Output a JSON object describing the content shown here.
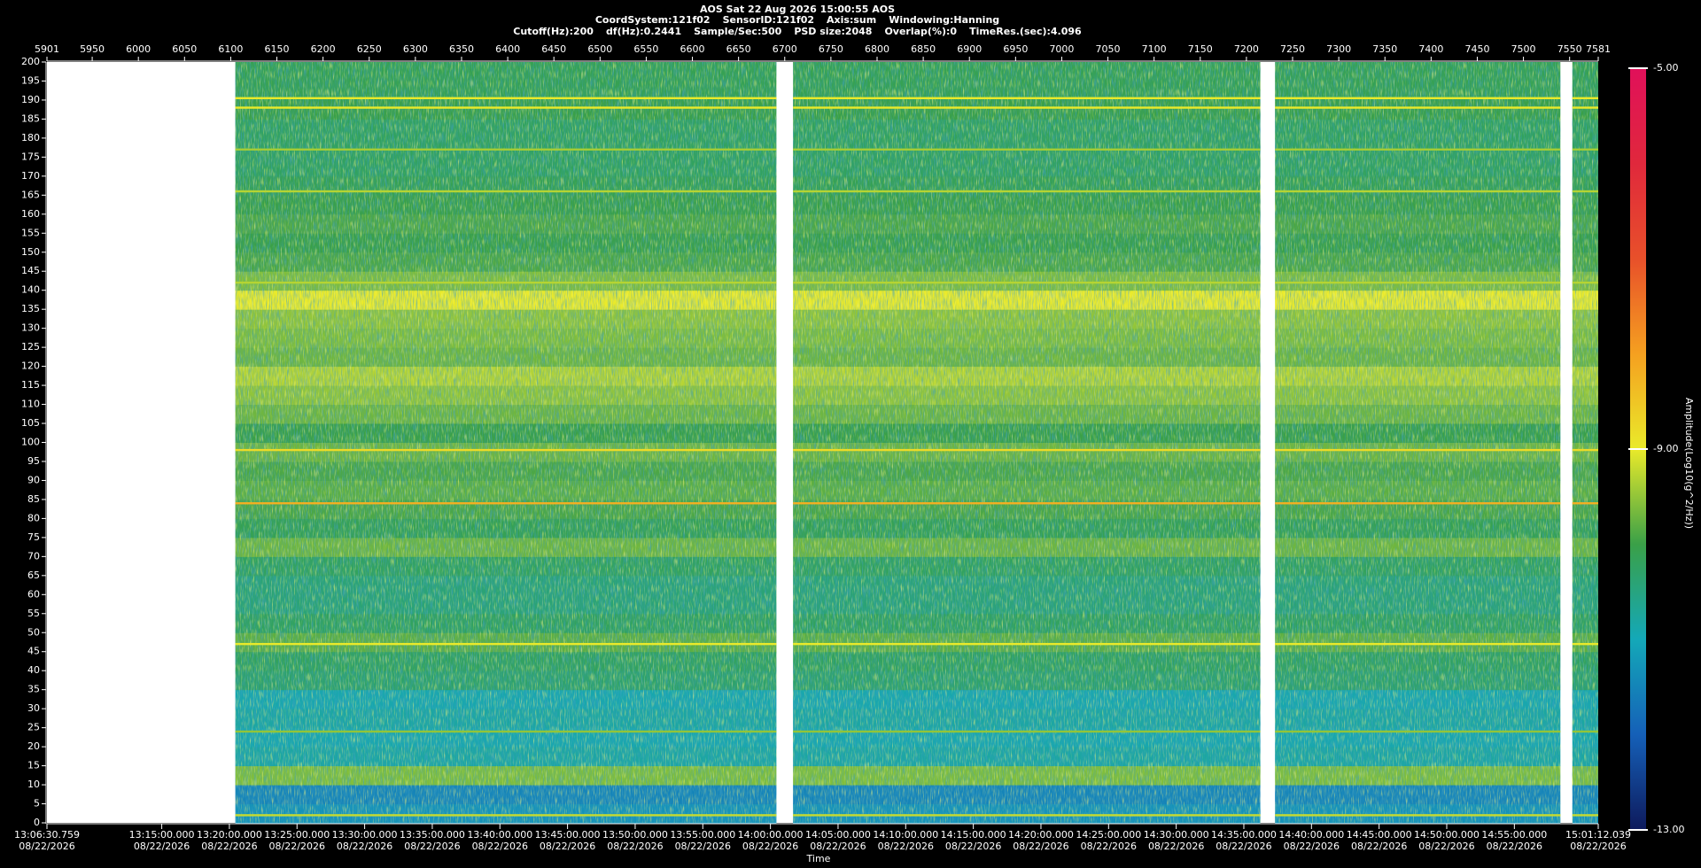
{
  "chart_data": {
    "type": "spectrogram",
    "header": [
      [
        "AOS  Sat 22 Aug 2026 15:00:55  AOS"
      ],
      [
        "CoordSystem:121f02",
        "SensorID:121f02",
        "Axis:sum",
        "Windowing:Hanning"
      ],
      [
        "Cutoff(Hz):200",
        "df(Hz):0.2441",
        "Sample/Sec:500",
        "PSD size:2048",
        "Overlap(%):0",
        "TimeRes.(sec):4.096"
      ]
    ],
    "xlabel": "Time",
    "colorbar_label": "Amplitude(Log10(g^2/Hz))",
    "xlim": [
      5901,
      7581
    ],
    "xticks": [
      5901,
      5950,
      6000,
      6050,
      6100,
      6150,
      6200,
      6250,
      6300,
      6350,
      6400,
      6450,
      6500,
      6550,
      6600,
      6650,
      6700,
      6750,
      6800,
      6850,
      6900,
      6950,
      7000,
      7050,
      7100,
      7150,
      7200,
      7250,
      7300,
      7350,
      7400,
      7450,
      7500,
      7550,
      7581
    ],
    "time_ticks": [
      {
        "time": "13:06:30.759",
        "date": "08/22/2026"
      },
      {
        "time": "13:15:00.000",
        "date": "08/22/2026"
      },
      {
        "time": "13:20:00.000",
        "date": "08/22/2026"
      },
      {
        "time": "13:25:00.000",
        "date": "08/22/2026"
      },
      {
        "time": "13:30:00.000",
        "date": "08/22/2026"
      },
      {
        "time": "13:35:00.000",
        "date": "08/22/2026"
      },
      {
        "time": "13:40:00.000",
        "date": "08/22/2026"
      },
      {
        "time": "13:45:00.000",
        "date": "08/22/2026"
      },
      {
        "time": "13:50:00.000",
        "date": "08/22/2026"
      },
      {
        "time": "13:55:00.000",
        "date": "08/22/2026"
      },
      {
        "time": "14:00:00.000",
        "date": "08/22/2026"
      },
      {
        "time": "14:05:00.000",
        "date": "08/22/2026"
      },
      {
        "time": "14:10:00.000",
        "date": "08/22/2026"
      },
      {
        "time": "14:15:00.000",
        "date": "08/22/2026"
      },
      {
        "time": "14:20:00.000",
        "date": "08/22/2026"
      },
      {
        "time": "14:25:00.000",
        "date": "08/22/2026"
      },
      {
        "time": "14:30:00.000",
        "date": "08/22/2026"
      },
      {
        "time": "14:35:00.000",
        "date": "08/22/2026"
      },
      {
        "time": "14:40:00.000",
        "date": "08/22/2026"
      },
      {
        "time": "14:45:00.000",
        "date": "08/22/2026"
      },
      {
        "time": "14:50:00.000",
        "date": "08/22/2026"
      },
      {
        "time": "14:55:00.000",
        "date": "08/22/2026"
      },
      {
        "time": "15:01:12.039",
        "date": "08/22/2026"
      }
    ],
    "ylim": [
      0,
      200
    ],
    "yticks": [
      0,
      5,
      10,
      15,
      20,
      25,
      30,
      35,
      40,
      45,
      50,
      55,
      60,
      65,
      70,
      75,
      80,
      85,
      90,
      95,
      100,
      105,
      110,
      115,
      120,
      125,
      130,
      135,
      140,
      145,
      150,
      155,
      160,
      165,
      170,
      175,
      180,
      185,
      190,
      195,
      200
    ],
    "zlim": [
      -13,
      -5
    ],
    "zticks": [
      {
        "value": -5,
        "label": "-5.00"
      },
      {
        "value": -9,
        "label": "-9.00"
      },
      {
        "value": -13,
        "label": "-13.00"
      }
    ],
    "colormap": [
      "#0e1a5c",
      "#1560b8",
      "#14a8b8",
      "#3aa048",
      "#eaea2a",
      "#f5a020",
      "#e8502a",
      "#e0283c",
      "#e0105a"
    ],
    "segments": [
      [
        6105,
        6691
      ],
      [
        6709,
        7215
      ],
      [
        7231,
        7540
      ],
      [
        7553,
        7581
      ]
    ],
    "bins": [
      0,
      5,
      10,
      15,
      20,
      25,
      30,
      35,
      40,
      45,
      50,
      55,
      60,
      65,
      70,
      75,
      80,
      85,
      90,
      95,
      100,
      105,
      110,
      115,
      120,
      125,
      130,
      135,
      140,
      145,
      150,
      155,
      160,
      165,
      170,
      175,
      180,
      185,
      190,
      195,
      200
    ],
    "profile": [
      -11.3,
      -11.5,
      -9.6,
      -10.8,
      -10.9,
      -10.8,
      -10.9,
      -10.3,
      -10.2,
      -9.8,
      -10.2,
      -10.4,
      -10.4,
      -10.2,
      -9.7,
      -10.1,
      -9.9,
      -9.8,
      -9.9,
      -9.7,
      -10.0,
      -9.7,
      -9.5,
      -9.3,
      -9.7,
      -9.6,
      -9.5,
      -9.0,
      -9.6,
      -9.9,
      -10.0,
      -9.9,
      -10.0,
      -10.1,
      -10.2,
      -10.2,
      -10.2,
      -10.0,
      -10.1,
      -10.1
    ],
    "lines": [
      {
        "freq": 2,
        "amplitude": -9.2
      },
      {
        "freq": 24,
        "amplitude": -9.5
      },
      {
        "freq": 47,
        "amplitude": -9.0
      },
      {
        "freq": 84,
        "amplitude": -8.2
      },
      {
        "freq": 98,
        "amplitude": -8.8
      },
      {
        "freq": 142,
        "amplitude": -9.3
      },
      {
        "freq": 166,
        "amplitude": -9.3
      },
      {
        "freq": 177,
        "amplitude": -9.4
      },
      {
        "freq": 188,
        "amplitude": -9.0
      },
      {
        "freq": 190.5,
        "amplitude": -9.0
      }
    ]
  }
}
